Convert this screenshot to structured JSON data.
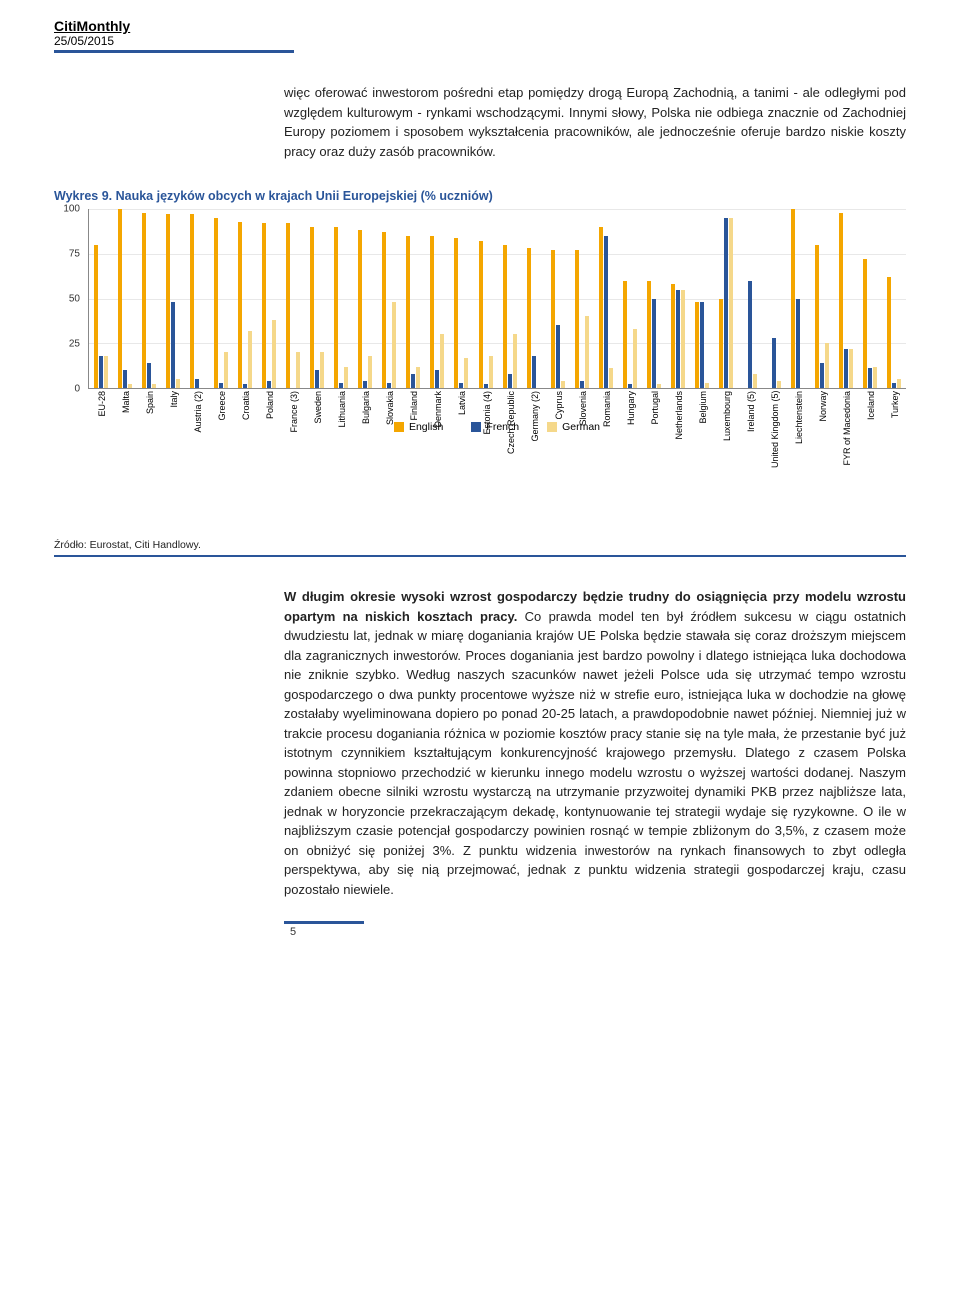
{
  "header": {
    "publication": "CitiMonthly",
    "date": "25/05/2015",
    "rule_color": "#2a5599"
  },
  "para1": "więc oferować inwestorom pośredni etap pomiędzy drogą Europą Zachodnią, a tanimi - ale odległymi pod względem kulturowym - rynkami wschodzącymi. Innymi słowy, Polska nie odbiega znacznie od Zachodniej Europy poziomem i sposobem wykształcenia pracowników, ale jednocześnie oferuje bardzo niskie koszty pracy oraz duży zasób pracowników.",
  "chart": {
    "title": "Wykres 9. Nauka języków obcych w krajach Unii Europejskiej (% uczniów)",
    "type": "bar",
    "ylim": [
      0,
      100
    ],
    "yticks": [
      0,
      25,
      50,
      75,
      100
    ],
    "series_names": [
      "English",
      "French",
      "German"
    ],
    "series_colors": [
      "#f4a600",
      "#2a5599",
      "#f5d88a"
    ],
    "grid_color": "#e8e8e8",
    "axis_color": "#888888",
    "label_fontsize": 9,
    "categories": [
      "EU-28",
      "Malta",
      "Spain",
      "Italy",
      "Austria (2)",
      "Greece",
      "Croatia",
      "Poland",
      "France (3)",
      "Sweden",
      "Lithuania",
      "Bulgaria",
      "Slovakia",
      "Finland",
      "Denmark",
      "Latvia",
      "Estonia (4)",
      "Czech Republic",
      "Germany (2)",
      "Cyprus",
      "Slovenia",
      "Romania",
      "Hungary",
      "Portugal",
      "Netherlands",
      "Belgium",
      "Luxembourg",
      "Ireland (5)",
      "United Kingdom (5)",
      "Liechtenstein",
      "Norway",
      "FYR of Macedonia",
      "Iceland",
      "Turkey"
    ],
    "values": {
      "English": [
        80,
        100,
        98,
        97,
        97,
        95,
        93,
        92,
        92,
        90,
        90,
        88,
        87,
        85,
        85,
        84,
        82,
        80,
        78,
        77,
        77,
        90,
        60,
        60,
        58,
        48,
        50,
        0,
        0,
        100,
        80,
        98,
        72,
        62
      ],
      "French": [
        18,
        10,
        14,
        48,
        5,
        3,
        2,
        4,
        0,
        10,
        3,
        4,
        3,
        8,
        10,
        3,
        2,
        8,
        18,
        35,
        4,
        85,
        2,
        50,
        55,
        48,
        95,
        60,
        28,
        50,
        14,
        22,
        11,
        3
      ],
      "German": [
        18,
        2,
        2,
        5,
        0,
        20,
        32,
        38,
        20,
        20,
        12,
        18,
        48,
        12,
        30,
        17,
        18,
        30,
        0,
        4,
        40,
        11,
        33,
        2,
        55,
        3,
        95,
        8,
        4,
        0,
        25,
        22,
        12,
        5
      ]
    }
  },
  "source": "Źródło: Eurostat, Citi Handlowy.",
  "para2": {
    "lead_bold": "W długim okresie wysoki wzrost gospodarczy będzie trudny do osiągnięcia przy modelu wzrostu opartym na niskich kosztach pracy.",
    "rest": " Co prawda model ten był źródłem sukcesu w ciągu ostatnich dwudziestu lat, jednak w miarę doganiania krajów UE Polska będzie stawała się coraz droższym miejscem dla zagranicznych inwestorów. Proces doganiania jest bardzo powolny i dlatego istniejąca luka dochodowa nie zniknie szybko. Według naszych szacunków nawet jeżeli Polsce uda się utrzymać tempo wzrostu gospodarczego o dwa punkty procentowe wyższe niż w strefie euro, istniejąca luka w dochodzie na głowę zostałaby wyeliminowana dopiero po ponad 20-25 latach, a prawdopodobnie nawet później. Niemniej już w trakcie procesu doganiania różnica w poziomie kosztów pracy stanie się na tyle mała, że przestanie być już istotnym czynnikiem kształtującym konkurencyjność krajowego przemysłu. Dlatego z czasem Polska powinna stopniowo przechodzić w kierunku innego modelu wzrostu o wyższej wartości dodanej. Naszym zdaniem obecne silniki wzrostu wystarczą na utrzymanie przyzwoitej dynamiki PKB przez najbliższe lata, jednak w horyzoncie przekraczającym dekadę, kontynuowanie tej strategii wydaje się ryzykowne. O ile w najbliższym czasie potencjał gospodarczy powinien rosnąć w tempie zbliżonym do 3,5%, z czasem może on obniżyć się poniżej 3%. Z punktu widzenia inwestorów na rynkach finansowych to zbyt odległa perspektywa, aby się nią przejmować, jednak z punktu widzenia strategii gospodarczej kraju, czasu pozostało niewiele."
  },
  "page_number": "5"
}
